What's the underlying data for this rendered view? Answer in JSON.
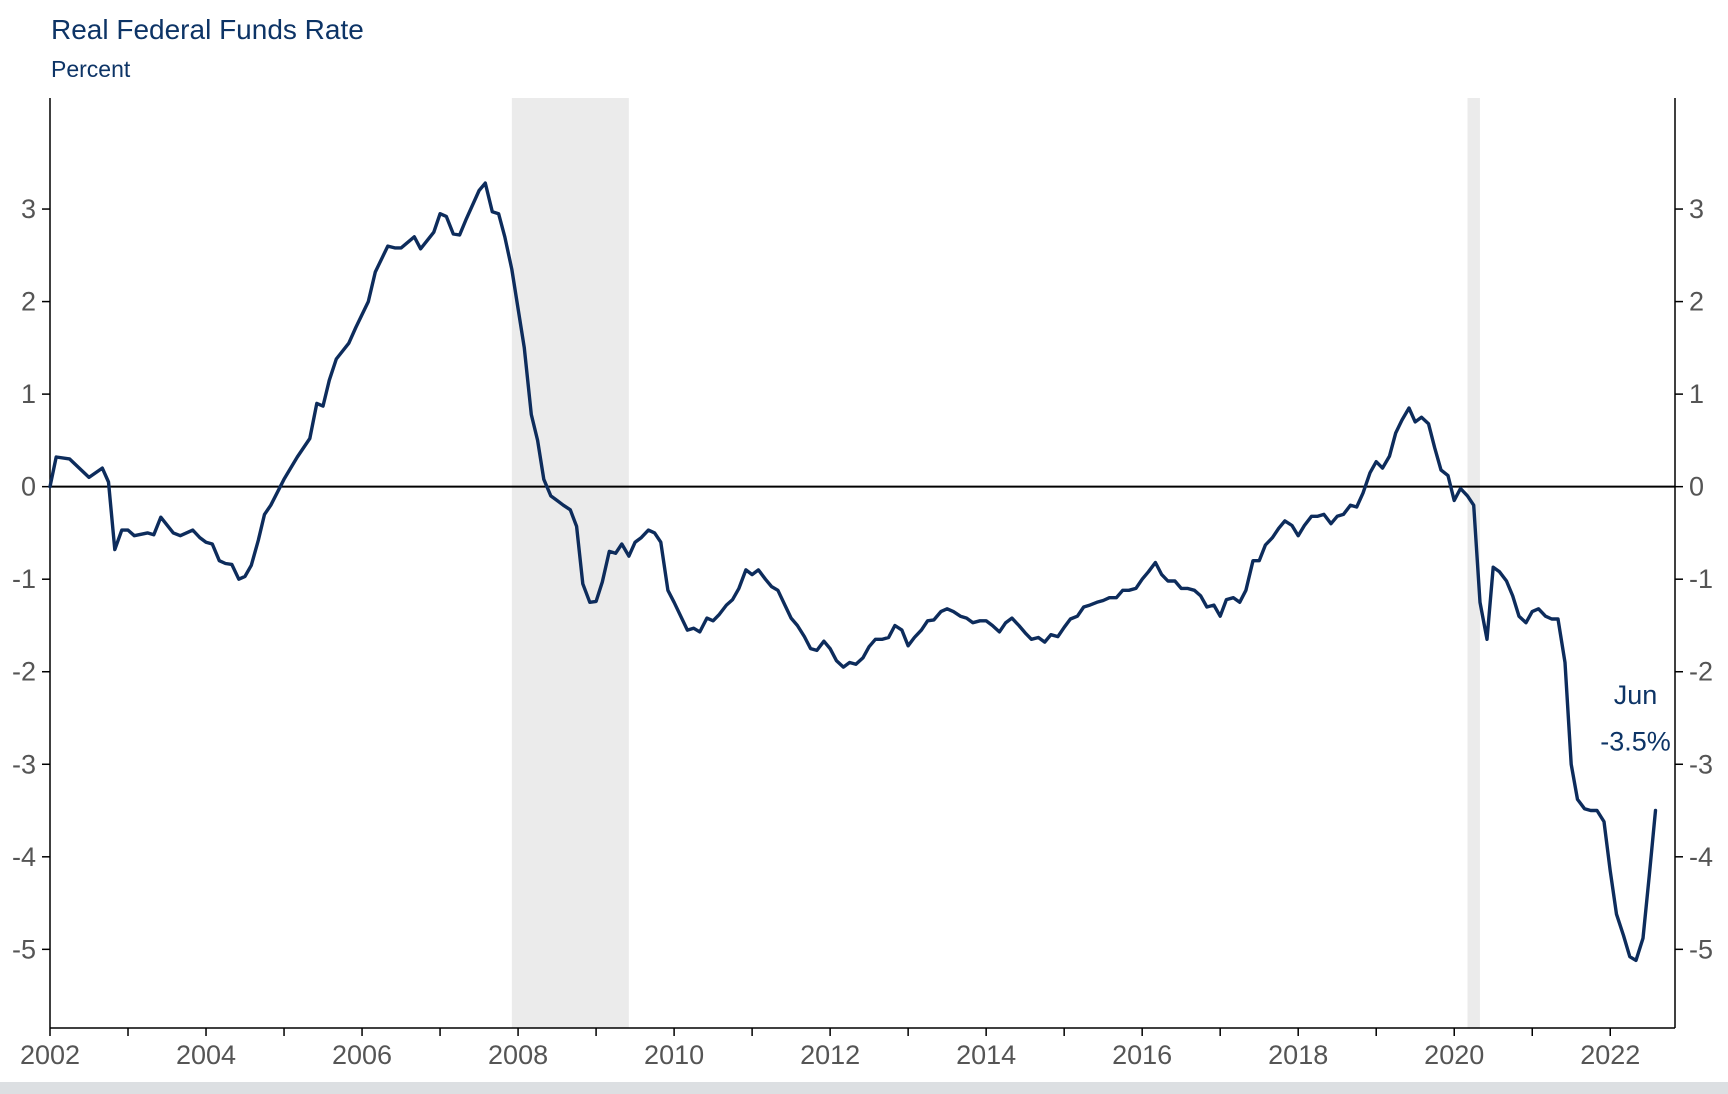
{
  "chart_data": {
    "type": "line",
    "title": "Real Federal Funds Rate",
    "ylabel": "Percent",
    "xlim": [
      2002,
      2022.83
    ],
    "ylim": [
      -5.85,
      4.2
    ],
    "x_ticks": [
      2002,
      2004,
      2006,
      2008,
      2010,
      2012,
      2014,
      2016,
      2018,
      2020,
      2022
    ],
    "y_ticks": [
      3,
      2,
      1,
      0,
      -1,
      -2,
      -3,
      -4,
      -5
    ],
    "y_tick_labels": [
      "3",
      "2",
      "1",
      "0",
      "-1",
      "-2",
      "-3",
      "-4",
      "-5"
    ],
    "zero_line": 0,
    "recessions": [
      {
        "start": 2007.92,
        "end": 2009.42
      },
      {
        "start": 2020.17,
        "end": 2020.33
      }
    ],
    "annotation": {
      "label": "Jun",
      "value_label": "-3.5%"
    },
    "series": [
      {
        "color": "#0d2c5c",
        "points": [
          [
            2002.0,
            0.0
          ],
          [
            2002.08,
            0.32
          ],
          [
            2002.25,
            0.3
          ],
          [
            2002.5,
            0.1
          ],
          [
            2002.67,
            0.2
          ],
          [
            2002.75,
            0.05
          ],
          [
            2002.83,
            -0.68
          ],
          [
            2002.92,
            -0.47
          ],
          [
            2003.0,
            -0.47
          ],
          [
            2003.08,
            -0.53
          ],
          [
            2003.25,
            -0.5
          ],
          [
            2003.33,
            -0.52
          ],
          [
            2003.42,
            -0.33
          ],
          [
            2003.58,
            -0.5
          ],
          [
            2003.67,
            -0.53
          ],
          [
            2003.83,
            -0.47
          ],
          [
            2003.92,
            -0.55
          ],
          [
            2004.0,
            -0.6
          ],
          [
            2004.08,
            -0.62
          ],
          [
            2004.17,
            -0.8
          ],
          [
            2004.25,
            -0.83
          ],
          [
            2004.33,
            -0.84
          ],
          [
            2004.42,
            -1.0
          ],
          [
            2004.5,
            -0.97
          ],
          [
            2004.58,
            -0.85
          ],
          [
            2004.67,
            -0.58
          ],
          [
            2004.75,
            -0.3
          ],
          [
            2004.83,
            -0.2
          ],
          [
            2005.0,
            0.08
          ],
          [
            2005.17,
            0.32
          ],
          [
            2005.33,
            0.52
          ],
          [
            2005.42,
            0.9
          ],
          [
            2005.5,
            0.87
          ],
          [
            2005.58,
            1.15
          ],
          [
            2005.67,
            1.38
          ],
          [
            2005.83,
            1.55
          ],
          [
            2005.92,
            1.72
          ],
          [
            2006.08,
            2.0
          ],
          [
            2006.17,
            2.32
          ],
          [
            2006.33,
            2.6
          ],
          [
            2006.42,
            2.58
          ],
          [
            2006.5,
            2.58
          ],
          [
            2006.67,
            2.7
          ],
          [
            2006.75,
            2.57
          ],
          [
            2006.92,
            2.75
          ],
          [
            2007.0,
            2.95
          ],
          [
            2007.08,
            2.92
          ],
          [
            2007.17,
            2.73
          ],
          [
            2007.25,
            2.72
          ],
          [
            2007.33,
            2.88
          ],
          [
            2007.5,
            3.2
          ],
          [
            2007.58,
            3.28
          ],
          [
            2007.67,
            2.97
          ],
          [
            2007.75,
            2.95
          ],
          [
            2007.83,
            2.7
          ],
          [
            2007.92,
            2.35
          ],
          [
            2008.08,
            1.5
          ],
          [
            2008.17,
            0.78
          ],
          [
            2008.25,
            0.5
          ],
          [
            2008.33,
            0.08
          ],
          [
            2008.42,
            -0.1
          ],
          [
            2008.5,
            -0.15
          ],
          [
            2008.58,
            -0.2
          ],
          [
            2008.67,
            -0.25
          ],
          [
            2008.75,
            -0.43
          ],
          [
            2008.83,
            -1.05
          ],
          [
            2008.92,
            -1.25
          ],
          [
            2009.0,
            -1.24
          ],
          [
            2009.08,
            -1.03
          ],
          [
            2009.17,
            -0.7
          ],
          [
            2009.25,
            -0.72
          ],
          [
            2009.33,
            -0.62
          ],
          [
            2009.42,
            -0.75
          ],
          [
            2009.5,
            -0.6
          ],
          [
            2009.58,
            -0.55
          ],
          [
            2009.67,
            -0.47
          ],
          [
            2009.75,
            -0.5
          ],
          [
            2009.83,
            -0.6
          ],
          [
            2009.92,
            -1.12
          ],
          [
            2010.0,
            -1.25
          ],
          [
            2010.17,
            -1.55
          ],
          [
            2010.25,
            -1.53
          ],
          [
            2010.33,
            -1.57
          ],
          [
            2010.42,
            -1.42
          ],
          [
            2010.5,
            -1.45
          ],
          [
            2010.58,
            -1.38
          ],
          [
            2010.67,
            -1.28
          ],
          [
            2010.75,
            -1.22
          ],
          [
            2010.83,
            -1.1
          ],
          [
            2010.92,
            -0.9
          ],
          [
            2011.0,
            -0.95
          ],
          [
            2011.08,
            -0.9
          ],
          [
            2011.17,
            -1.0
          ],
          [
            2011.25,
            -1.08
          ],
          [
            2011.33,
            -1.12
          ],
          [
            2011.42,
            -1.28
          ],
          [
            2011.5,
            -1.42
          ],
          [
            2011.58,
            -1.5
          ],
          [
            2011.67,
            -1.62
          ],
          [
            2011.75,
            -1.75
          ],
          [
            2011.83,
            -1.77
          ],
          [
            2011.92,
            -1.67
          ],
          [
            2012.0,
            -1.75
          ],
          [
            2012.08,
            -1.88
          ],
          [
            2012.17,
            -1.95
          ],
          [
            2012.25,
            -1.9
          ],
          [
            2012.33,
            -1.92
          ],
          [
            2012.42,
            -1.85
          ],
          [
            2012.5,
            -1.73
          ],
          [
            2012.58,
            -1.65
          ],
          [
            2012.67,
            -1.65
          ],
          [
            2012.75,
            -1.63
          ],
          [
            2012.83,
            -1.5
          ],
          [
            2012.92,
            -1.55
          ],
          [
            2013.0,
            -1.72
          ],
          [
            2013.08,
            -1.63
          ],
          [
            2013.17,
            -1.55
          ],
          [
            2013.25,
            -1.45
          ],
          [
            2013.33,
            -1.44
          ],
          [
            2013.42,
            -1.35
          ],
          [
            2013.5,
            -1.32
          ],
          [
            2013.58,
            -1.35
          ],
          [
            2013.67,
            -1.4
          ],
          [
            2013.75,
            -1.42
          ],
          [
            2013.83,
            -1.47
          ],
          [
            2013.92,
            -1.45
          ],
          [
            2014.0,
            -1.45
          ],
          [
            2014.08,
            -1.5
          ],
          [
            2014.17,
            -1.57
          ],
          [
            2014.25,
            -1.47
          ],
          [
            2014.33,
            -1.42
          ],
          [
            2014.42,
            -1.5
          ],
          [
            2014.5,
            -1.58
          ],
          [
            2014.58,
            -1.65
          ],
          [
            2014.67,
            -1.63
          ],
          [
            2014.75,
            -1.68
          ],
          [
            2014.83,
            -1.6
          ],
          [
            2014.92,
            -1.62
          ],
          [
            2015.0,
            -1.52
          ],
          [
            2015.08,
            -1.43
          ],
          [
            2015.17,
            -1.4
          ],
          [
            2015.25,
            -1.3
          ],
          [
            2015.33,
            -1.28
          ],
          [
            2015.42,
            -1.25
          ],
          [
            2015.5,
            -1.23
          ],
          [
            2015.58,
            -1.2
          ],
          [
            2015.67,
            -1.2
          ],
          [
            2015.75,
            -1.12
          ],
          [
            2015.83,
            -1.12
          ],
          [
            2015.92,
            -1.1
          ],
          [
            2016.0,
            -1.0
          ],
          [
            2016.08,
            -0.92
          ],
          [
            2016.17,
            -0.82
          ],
          [
            2016.25,
            -0.95
          ],
          [
            2016.33,
            -1.02
          ],
          [
            2016.42,
            -1.02
          ],
          [
            2016.5,
            -1.1
          ],
          [
            2016.58,
            -1.1
          ],
          [
            2016.67,
            -1.12
          ],
          [
            2016.75,
            -1.18
          ],
          [
            2016.83,
            -1.3
          ],
          [
            2016.92,
            -1.28
          ],
          [
            2017.0,
            -1.4
          ],
          [
            2017.08,
            -1.22
          ],
          [
            2017.17,
            -1.2
          ],
          [
            2017.25,
            -1.25
          ],
          [
            2017.33,
            -1.12
          ],
          [
            2017.42,
            -0.8
          ],
          [
            2017.5,
            -0.8
          ],
          [
            2017.58,
            -0.63
          ],
          [
            2017.67,
            -0.55
          ],
          [
            2017.75,
            -0.45
          ],
          [
            2017.83,
            -0.37
          ],
          [
            2017.92,
            -0.42
          ],
          [
            2018.0,
            -0.53
          ],
          [
            2018.08,
            -0.42
          ],
          [
            2018.17,
            -0.32
          ],
          [
            2018.25,
            -0.32
          ],
          [
            2018.33,
            -0.3
          ],
          [
            2018.42,
            -0.4
          ],
          [
            2018.5,
            -0.32
          ],
          [
            2018.58,
            -0.3
          ],
          [
            2018.67,
            -0.2
          ],
          [
            2018.75,
            -0.22
          ],
          [
            2018.83,
            -0.07
          ],
          [
            2018.92,
            0.15
          ],
          [
            2019.0,
            0.27
          ],
          [
            2019.08,
            0.2
          ],
          [
            2019.17,
            0.33
          ],
          [
            2019.25,
            0.58
          ],
          [
            2019.33,
            0.72
          ],
          [
            2019.42,
            0.85
          ],
          [
            2019.5,
            0.7
          ],
          [
            2019.58,
            0.75
          ],
          [
            2019.67,
            0.68
          ],
          [
            2019.75,
            0.42
          ],
          [
            2019.83,
            0.18
          ],
          [
            2019.92,
            0.12
          ],
          [
            2020.0,
            -0.15
          ],
          [
            2020.08,
            -0.02
          ],
          [
            2020.17,
            -0.1
          ],
          [
            2020.25,
            -0.2
          ],
          [
            2020.33,
            -1.25
          ],
          [
            2020.42,
            -1.65
          ],
          [
            2020.5,
            -0.87
          ],
          [
            2020.58,
            -0.92
          ],
          [
            2020.67,
            -1.02
          ],
          [
            2020.75,
            -1.18
          ],
          [
            2020.83,
            -1.4
          ],
          [
            2020.92,
            -1.47
          ],
          [
            2021.0,
            -1.35
          ],
          [
            2021.08,
            -1.32
          ],
          [
            2021.17,
            -1.4
          ],
          [
            2021.25,
            -1.43
          ],
          [
            2021.33,
            -1.43
          ],
          [
            2021.42,
            -1.9
          ],
          [
            2021.5,
            -3.0
          ],
          [
            2021.58,
            -3.38
          ],
          [
            2021.67,
            -3.48
          ],
          [
            2021.75,
            -3.5
          ],
          [
            2021.83,
            -3.5
          ],
          [
            2021.92,
            -3.62
          ],
          [
            2022.0,
            -4.15
          ],
          [
            2022.08,
            -4.62
          ],
          [
            2022.17,
            -4.85
          ],
          [
            2022.25,
            -5.08
          ],
          [
            2022.33,
            -5.12
          ],
          [
            2022.42,
            -4.88
          ],
          [
            2022.5,
            -4.2
          ],
          [
            2022.58,
            -3.5
          ]
        ]
      }
    ]
  }
}
